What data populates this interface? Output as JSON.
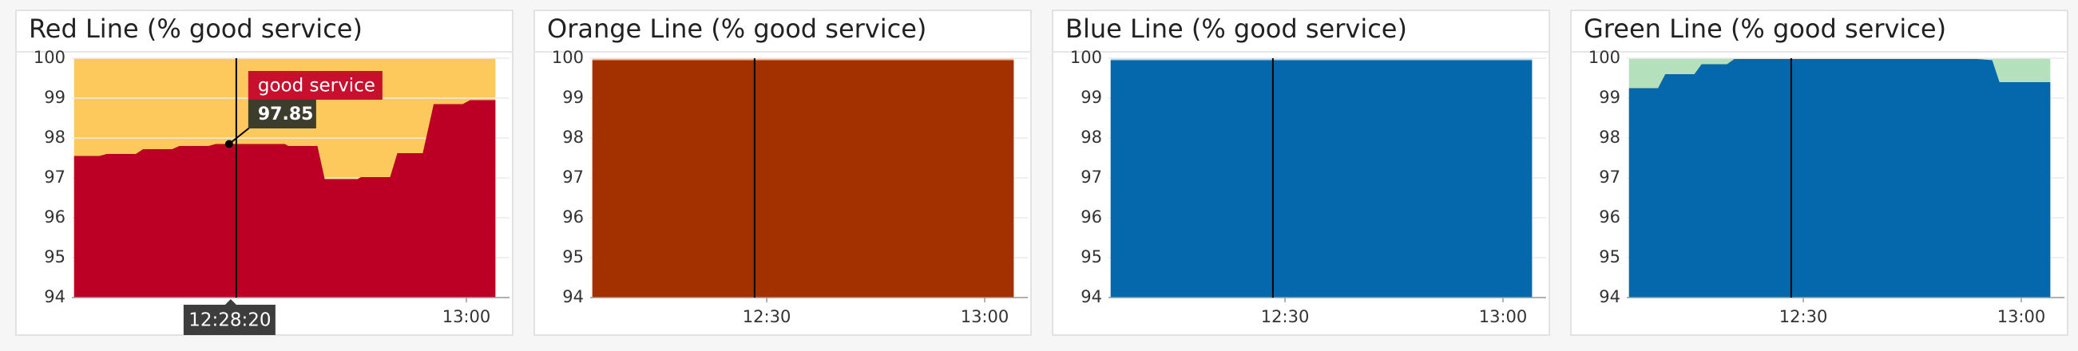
{
  "chart_data": [
    {
      "type": "area",
      "title": "Red Line (% good service)",
      "ylim": [
        94,
        100
      ],
      "yticks": [
        94,
        95,
        96,
        97,
        98,
        99,
        100
      ],
      "xlim": [
        725.7,
        784.4
      ],
      "xticks": [
        {
          "value": 780,
          "label": "13:00"
        }
      ],
      "grid": true,
      "background_color": "#fdc95c",
      "hover_x": {
        "value": 748.33,
        "label": "12:28:20"
      },
      "x": [
        726,
        729.5,
        730.5,
        734.5,
        735.5,
        739.5,
        740.5,
        744.5,
        745.5,
        755,
        755.5,
        759.5,
        760.5,
        765,
        765.5,
        769.5,
        770.5,
        774,
        775.5,
        779.5,
        780.5,
        784
      ],
      "series": [
        {
          "name": "good service",
          "color": "#bc0025",
          "values": [
            97.55,
            97.55,
            97.6,
            97.6,
            97.72,
            97.72,
            97.8,
            97.8,
            97.85,
            97.85,
            97.8,
            97.8,
            96.97,
            96.97,
            97.02,
            97.02,
            97.62,
            97.62,
            98.85,
            98.85,
            98.95,
            98.95
          ]
        }
      ]
    },
    {
      "type": "area",
      "title": "Orange Line (% good service)",
      "ylim": [
        94,
        100
      ],
      "yticks": [
        94,
        95,
        96,
        97,
        98,
        99,
        100
      ],
      "xlim": [
        725.7,
        784.4
      ],
      "xticks": [
        {
          "value": 750,
          "label": "12:30"
        },
        {
          "value": 780,
          "label": "13:00"
        }
      ],
      "grid": true,
      "background_color": "#f4b183",
      "x": [
        726,
        784
      ],
      "series": [
        {
          "color": "#a33100",
          "values": [
            99.95,
            99.95
          ]
        }
      ]
    },
    {
      "type": "area",
      "title": "Blue Line (% good service)",
      "ylim": [
        94,
        100
      ],
      "yticks": [
        94,
        95,
        96,
        97,
        98,
        99,
        100
      ],
      "xlim": [
        725.7,
        784.4
      ],
      "xticks": [
        {
          "value": 750,
          "label": "12:30"
        },
        {
          "value": 780,
          "label": "13:00"
        }
      ],
      "grid": true,
      "background_color": "#b3d4ee",
      "x": [
        726,
        784
      ],
      "series": [
        {
          "color": "#0568ad",
          "values": [
            99.95,
            99.95
          ]
        }
      ]
    },
    {
      "type": "area",
      "title": "Green Line (% good service)",
      "ylim": [
        94,
        100
      ],
      "yticks": [
        94,
        95,
        96,
        97,
        98,
        99,
        100
      ],
      "xlim": [
        725.7,
        784.4
      ],
      "xticks": [
        {
          "value": 750,
          "label": "12:30"
        },
        {
          "value": 780,
          "label": "13:00"
        }
      ],
      "grid": true,
      "background_color": "#b4e1bc",
      "x": [
        726,
        730,
        731,
        735,
        736,
        739.5,
        740.5,
        774,
        776,
        777,
        784
      ],
      "series": [
        {
          "color": "#0568ad",
          "values": [
            99.25,
            99.25,
            99.6,
            99.6,
            99.85,
            99.85,
            99.98,
            99.98,
            99.95,
            99.4,
            99.4
          ]
        }
      ]
    }
  ]
}
